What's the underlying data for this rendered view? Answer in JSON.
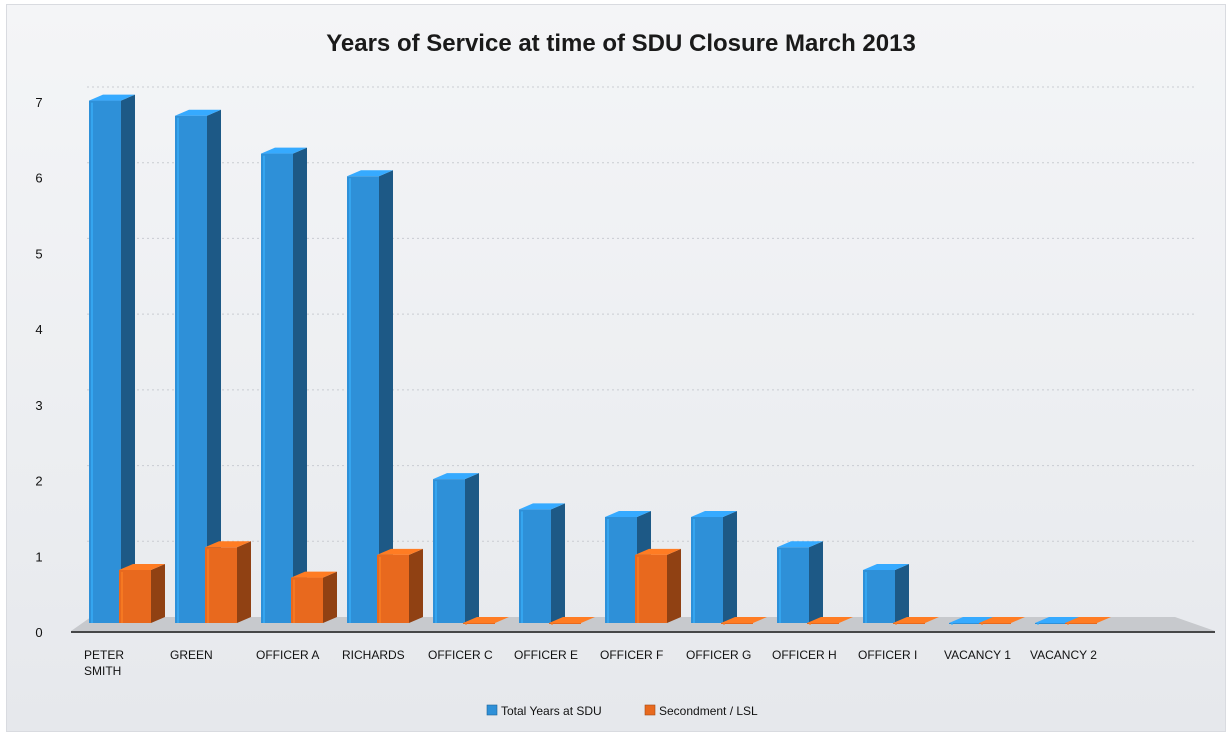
{
  "chart_data": {
    "type": "bar",
    "title": "Years of Service at time of SDU Closure March 2013",
    "xlabel": "",
    "ylabel": "",
    "ylim": [
      0,
      7
    ],
    "yticks": [
      0,
      1,
      2,
      3,
      4,
      5,
      6,
      7
    ],
    "grid": true,
    "legend_position": "bottom",
    "categories": [
      [
        "PETER",
        "SMITH"
      ],
      [
        "GREEN"
      ],
      [
        "OFFICER A"
      ],
      [
        "RICHARDS"
      ],
      [
        "OFFICER C"
      ],
      [
        "OFFICER E"
      ],
      [
        "OFFICER F"
      ],
      [
        "OFFICER G"
      ],
      [
        "OFFICER H"
      ],
      [
        "OFFICER I"
      ],
      [
        "VACANCY 1"
      ],
      [
        "VACANCY 2"
      ]
    ],
    "series": [
      {
        "name": "Total Years at SDU",
        "color": "#2e90d8",
        "values": [
          6.9,
          6.7,
          6.2,
          5.9,
          1.9,
          1.5,
          1.4,
          1.4,
          1.0,
          0.7,
          0,
          0
        ]
      },
      {
        "name": "Secondment / LSL",
        "color": "#e8691e",
        "values": [
          0.7,
          1.0,
          0.6,
          0.9,
          0,
          0,
          0.9,
          0,
          0,
          0,
          0,
          0
        ]
      }
    ]
  }
}
